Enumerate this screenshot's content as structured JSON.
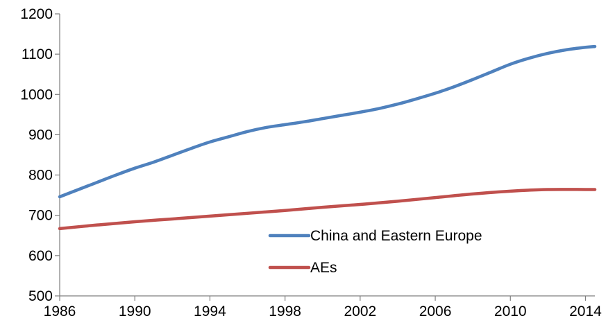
{
  "chart_data": {
    "type": "line",
    "title": "",
    "xlabel": "",
    "ylabel": "",
    "xlim": [
      1986,
      2014.5
    ],
    "ylim": [
      500,
      1200
    ],
    "x_ticks": [
      1986,
      1990,
      1994,
      1998,
      2002,
      2006,
      2010,
      2014
    ],
    "y_ticks": [
      500,
      600,
      700,
      800,
      900,
      1000,
      1100,
      1200
    ],
    "grid": false,
    "legend_position": "bottom-center",
    "series": [
      {
        "name": "China and Eastern Europe",
        "color": "#4f81bd",
        "x": [
          1986,
          1987,
          1988,
          1989,
          1990,
          1991,
          1992,
          1993,
          1994,
          1995,
          1996,
          1997,
          1998,
          1999,
          2000,
          2001,
          2002,
          2003,
          2004,
          2005,
          2006,
          2007,
          2008,
          2009,
          2010,
          2011,
          2012,
          2013,
          2014,
          2014.5
        ],
        "y": [
          746,
          764,
          782,
          800,
          817,
          832,
          849,
          866,
          882,
          895,
          908,
          918,
          925,
          932,
          940,
          948,
          956,
          965,
          976,
          989,
          1003,
          1019,
          1037,
          1056,
          1075,
          1090,
          1102,
          1111,
          1117,
          1119
        ]
      },
      {
        "name": "AEs",
        "color": "#c0504d",
        "x": [
          1986,
          1988,
          1990,
          1992,
          1994,
          1996,
          1998,
          2000,
          2002,
          2004,
          2006,
          2008,
          2010,
          2012,
          2014,
          2014.5
        ],
        "y": [
          667,
          676,
          684,
          691,
          698,
          705,
          712,
          720,
          727,
          735,
          744,
          753,
          760,
          764,
          764,
          764
        ]
      }
    ]
  }
}
